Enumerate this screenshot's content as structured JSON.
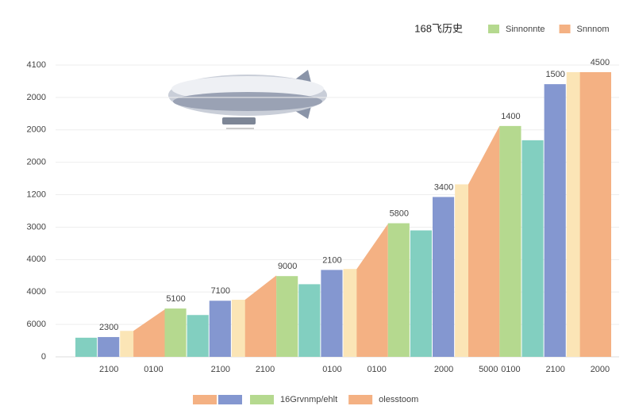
{
  "chart_data": {
    "type": "bar",
    "title": "168飞历史",
    "legend": [
      {
        "name": "Sinnonnte",
        "color": "#b5d98f"
      },
      {
        "name": "Snnnom",
        "color": "#f4b183"
      }
    ],
    "bottom_legend": [
      {
        "colors": [
          "#f4b183",
          "#8497d0"
        ]
      },
      {
        "colors": [
          "#b5d98f"
        ],
        "name": "16Grvnmp/ehlt"
      },
      {
        "colors": [
          "#f4b183"
        ],
        "name": "olesstoom"
      }
    ],
    "categories": [
      null,
      "2100",
      null,
      "0100",
      null,
      null,
      "2100",
      null,
      "2100",
      null,
      null,
      "0100",
      null,
      "0100",
      null,
      null,
      "2000",
      null,
      "5000",
      "0100",
      null,
      "2100",
      null,
      "2000"
    ],
    "values": [
      0.59,
      0.61,
      0.8,
      1.46,
      1.49,
      1.29,
      1.73,
      1.76,
      2.51,
      2.49,
      2.24,
      2.68,
      2.71,
      4.1,
      4.12,
      3.9,
      4.93,
      5.32,
      7.12,
      7.12,
      6.68,
      8.41,
      8.78,
      8.78
    ],
    "value_labels": [
      null,
      "2300",
      null,
      null,
      "5100",
      null,
      "7100",
      null,
      null,
      "9000",
      null,
      "2100",
      null,
      null,
      "5800",
      null,
      "3400",
      null,
      null,
      "1400",
      null,
      "1500",
      null,
      "4500"
    ],
    "colors": [
      "#82cfc0",
      "#8497d0",
      "#fbe5b6",
      "#f4b183",
      "#b5d98f",
      "#82cfc0",
      "#8497d0",
      "#fbe5b6",
      "#f4b183",
      "#b5d98f",
      "#82cfc0",
      "#8497d0",
      "#fbe5b6",
      "#f4b183",
      "#b5d98f",
      "#82cfc0",
      "#8497d0",
      "#fbe5b6",
      "#f4b183",
      "#b5d98f",
      "#82cfc0",
      "#8497d0",
      "#fbe5b6",
      "#f4b183"
    ],
    "ylim": [
      0,
      9
    ],
    "yticks": [
      0,
      {
        "value": 1,
        "label": "6000"
      },
      {
        "value": 2,
        "label": "4000"
      },
      {
        "value": 3,
        "label": "4000"
      },
      {
        "value": 4,
        "label": "3000"
      },
      {
        "value": 5,
        "label": "1200"
      },
      {
        "value": 6,
        "label": "2000"
      },
      {
        "value": 7,
        "label": "2000"
      },
      {
        "value": 8,
        "label": "2000"
      },
      {
        "value": 9,
        "label": "4100"
      }
    ],
    "grid": true
  }
}
